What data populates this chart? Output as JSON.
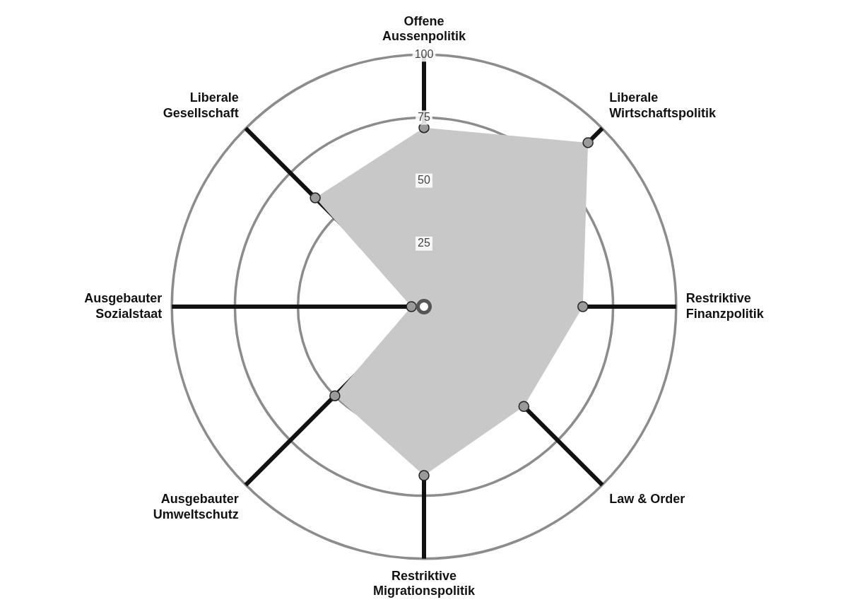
{
  "chart_data": {
    "type": "radar",
    "categories": [
      "Offene Aussenpolitik",
      "Liberale Wirtschaftspolitik",
      "Restriktive Finanzpolitik",
      "Law & Order",
      "Restriktive Migrationspolitik",
      "Ausgebauter Umweltschutz",
      "Ausgebauter Sozialstaat",
      "Liberale Gesellschaft"
    ],
    "series": [
      {
        "color": "#c8c8c8",
        "values": [
          71,
          92,
          63,
          56,
          67,
          50,
          5,
          61
        ]
      }
    ],
    "ylim": [
      0,
      100
    ],
    "yticks": [
      25,
      50,
      75,
      100
    ],
    "marker": "circle",
    "grid": true
  }
}
